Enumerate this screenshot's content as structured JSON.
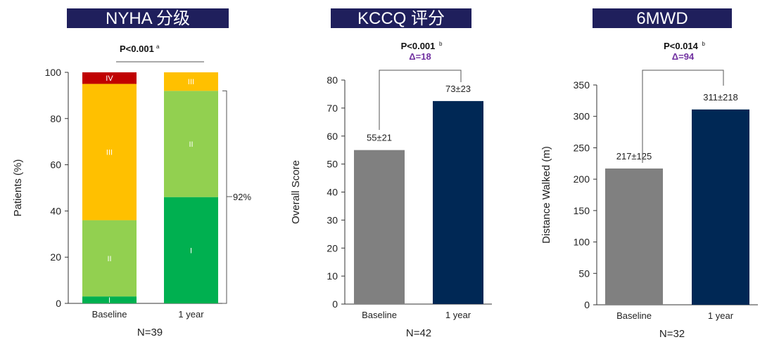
{
  "colors": {
    "title_bg": "#1f1f5c",
    "purple": "#7030a0",
    "grey": "#808080",
    "navy": "#002855",
    "class_I": "#00b050",
    "class_II": "#92d050",
    "class_III": "#ffc000",
    "class_IV": "#c00000"
  },
  "chart_data": [
    {
      "type": "bar",
      "stacked": true,
      "title": "NYHA 分级",
      "ylabel": "Patients (%)",
      "ylim": [
        0,
        100
      ],
      "yticks": [
        0,
        20,
        40,
        60,
        80,
        100
      ],
      "categories": [
        "Baseline",
        "1 year"
      ],
      "series": [
        {
          "name": "I",
          "values": [
            3,
            46
          ]
        },
        {
          "name": "II",
          "values": [
            33,
            46
          ]
        },
        {
          "name": "III",
          "values": [
            59,
            8
          ]
        },
        {
          "name": "IV",
          "values": [
            5,
            0
          ]
        }
      ],
      "pvalue": "P<0.001",
      "pvalue_sup": "a",
      "bracket_label": "92%",
      "n_label": "N=39"
    },
    {
      "type": "bar",
      "title": "KCCQ 评分",
      "ylabel": "Overall Score",
      "ylim": [
        0,
        80
      ],
      "yticks": [
        0,
        10,
        20,
        30,
        40,
        50,
        60,
        70,
        80
      ],
      "categories": [
        "Baseline",
        "1 year"
      ],
      "values": [
        55,
        72.5
      ],
      "data_labels": [
        "55±21",
        "73±23"
      ],
      "pvalue": "P<0.001",
      "pvalue_sup": "b",
      "delta": "Δ=18",
      "n_label": "N=42"
    },
    {
      "type": "bar",
      "title": "6MWD",
      "ylabel": "Distance Walked (m)",
      "ylim": [
        0,
        350
      ],
      "yticks": [
        0,
        50,
        100,
        150,
        200,
        250,
        300,
        350
      ],
      "categories": [
        "Baseline",
        "1 year"
      ],
      "values": [
        217,
        311
      ],
      "data_labels": [
        "217±125",
        "311±218"
      ],
      "pvalue": "P<0.014",
      "pvalue_sup": "b",
      "delta": "Δ=94",
      "n_label": "N=32"
    }
  ]
}
